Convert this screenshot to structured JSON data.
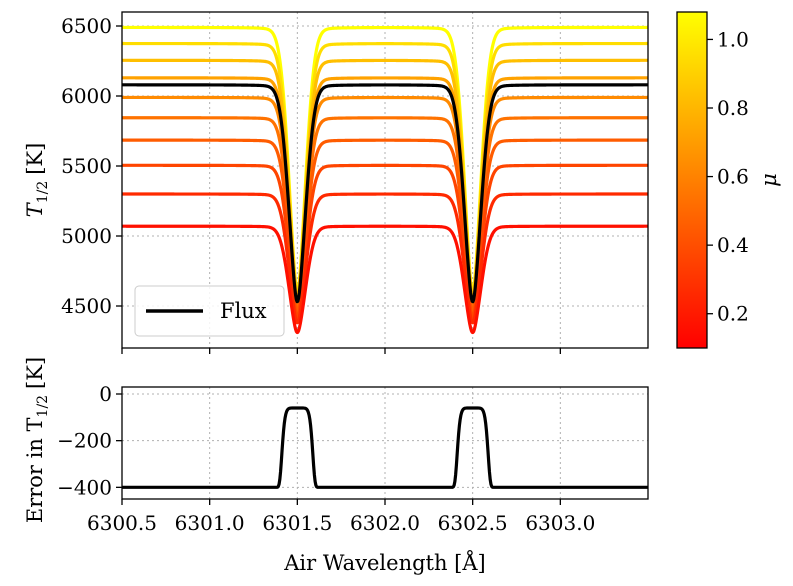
{
  "chart_data": [
    {
      "type": "line",
      "panel": "top",
      "ylabel_main": "T",
      "ylabel_sub": "1/2",
      "ylabel_unit": "[K]",
      "xlim": [
        6300.5,
        6303.5
      ],
      "ylim": [
        4200,
        6600
      ],
      "yticks": [
        4500,
        5000,
        5500,
        6000,
        6500
      ],
      "ytick_labels": [
        "4500",
        "5000",
        "5500",
        "6000",
        "6500"
      ],
      "grid": true,
      "line_centers": [
        6301.5,
        6302.5
      ],
      "series": [
        {
          "name": "mu 1.00",
          "color": "#ffff00",
          "continuum": 6490,
          "core": 4600
        },
        {
          "name": "mu 0.95",
          "color": "#ffdd00",
          "continuum": 6375,
          "core": 4580
        },
        {
          "name": "mu 0.88",
          "color": "#ffbf00",
          "continuum": 6255,
          "core": 4560
        },
        {
          "name": "mu 0.80",
          "color": "#ffa200",
          "continuum": 6130,
          "core": 4540
        },
        {
          "name": "mu 0.70",
          "color": "#ff8a00",
          "continuum": 5990,
          "core": 4510
        },
        {
          "name": "mu 0.60",
          "color": "#ff7300",
          "continuum": 5845,
          "core": 4490
        },
        {
          "name": "mu 0.50",
          "color": "#ff5c00",
          "continuum": 5685,
          "core": 4460
        },
        {
          "name": "mu 0.40",
          "color": "#ff4500",
          "continuum": 5505,
          "core": 4420
        },
        {
          "name": "mu 0.30",
          "color": "#ff2a00",
          "continuum": 5300,
          "core": 4380
        },
        {
          "name": "mu 0.15",
          "color": "#ff1000",
          "continuum": 5070,
          "core": 4310
        },
        {
          "name": "Flux",
          "color": "#000000",
          "continuum": 6080,
          "core": 4530
        }
      ],
      "legend": {
        "label": "Flux",
        "placement": "lower-left"
      }
    },
    {
      "type": "line",
      "panel": "bottom",
      "ylabel_main": "Error in T",
      "ylabel_sub": "1/2",
      "ylabel_unit": "[K]",
      "xlabel": "Air Wavelength [Å]",
      "xlim": [
        6300.5,
        6303.5
      ],
      "ylim": [
        -450,
        30
      ],
      "yticks": [
        -400,
        -200,
        0
      ],
      "ytick_labels": [
        "−400",
        "−200",
        "0"
      ],
      "xticks": [
        6300.5,
        6301.0,
        6301.5,
        6302.0,
        6302.5,
        6303.0
      ],
      "xtick_labels": [
        "6300.5",
        "6301.0",
        "6301.5",
        "6302.0",
        "6302.5",
        "6303.0"
      ],
      "grid": true,
      "series": [
        {
          "name": "Error",
          "color": "#000000",
          "baseline": -400,
          "peak": -60,
          "centers": [
            6301.5,
            6302.5
          ]
        }
      ]
    }
  ],
  "colorbar": {
    "label": "μ",
    "range": [
      0.1,
      1.08
    ],
    "ticks": [
      0.2,
      0.4,
      0.6,
      0.8,
      1.0
    ],
    "tick_labels": [
      "0.2",
      "0.4",
      "0.6",
      "0.8",
      "1.0"
    ],
    "colors": [
      "#ff0000",
      "#ff8000",
      "#ffff00"
    ]
  }
}
